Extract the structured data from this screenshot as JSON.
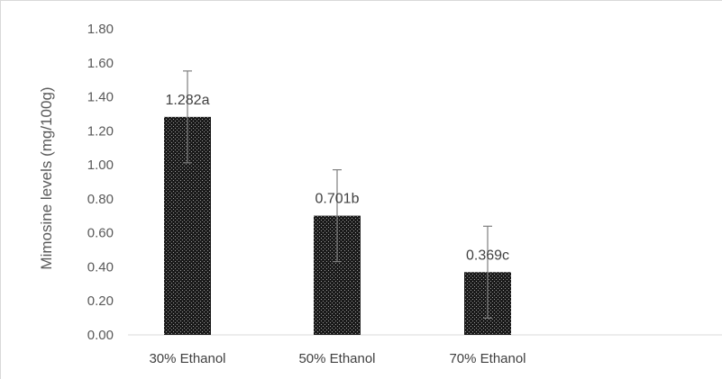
{
  "chart_data": {
    "type": "bar",
    "title": "",
    "xlabel": "",
    "ylabel": "Mimosine levels  (mg/100g)",
    "categories": [
      "30% Ethanol",
      "50% Ethanol",
      "70% Ethanol"
    ],
    "values": [
      1.282,
      0.701,
      0.369
    ],
    "data_labels": [
      "1.282a",
      "0.701b",
      "0.369c"
    ],
    "error_bars": [
      0.27,
      0.27,
      0.27
    ],
    "ylim": [
      0,
      1.8
    ],
    "y_ticks": [
      "0.00",
      "0.20",
      "0.40",
      "0.60",
      "0.80",
      "1.00",
      "1.20",
      "1.40",
      "1.60",
      "1.80"
    ],
    "grid": false,
    "legend": "none",
    "colors": {
      "bar_fill": "#1a1a1a",
      "bar_dots": "#9a9a9a",
      "error_bar": "#7f7f7f",
      "axis": "#d9d9d9",
      "frame": "#d9d9d9"
    }
  }
}
